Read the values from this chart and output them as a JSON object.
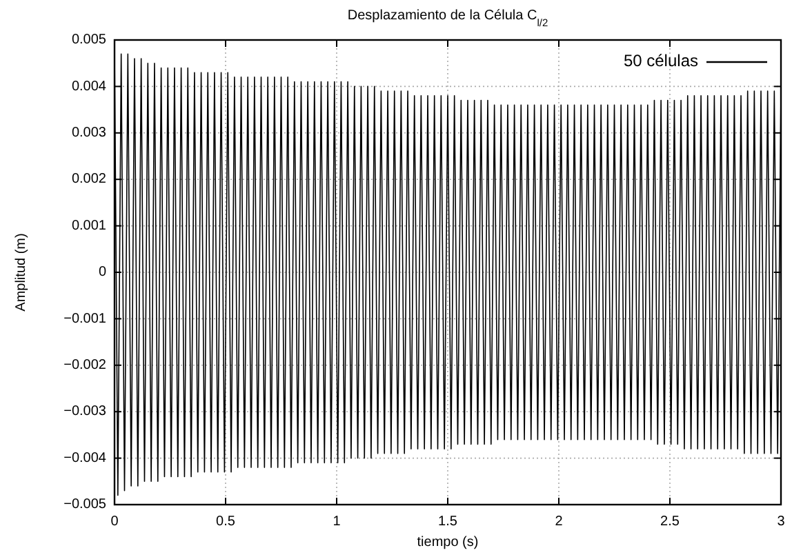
{
  "chart_data": {
    "type": "line",
    "title": "Desplazamiento de la Célula C$_{l/2}$",
    "xlabel": "tiempo (s)",
    "ylabel": "Amplitud (m)",
    "x": [
      0,
      0.015,
      0.03,
      0.045,
      0.06,
      0.075,
      0.09,
      0.105,
      0.12,
      0.135,
      0.15,
      0.165,
      0.18,
      0.195,
      0.21,
      0.225,
      0.24,
      0.255,
      0.27,
      0.285,
      0.3,
      0.315,
      0.33,
      0.345,
      0.36,
      0.375,
      0.39,
      0.405,
      0.42,
      0.435,
      0.45,
      0.465,
      0.48,
      0.495,
      0.51,
      0.525,
      0.54,
      0.555,
      0.57,
      0.585,
      0.6,
      0.615,
      0.63,
      0.645,
      0.66,
      0.675,
      0.69,
      0.705,
      0.72,
      0.735,
      0.75,
      0.765,
      0.78,
      0.795,
      0.81,
      0.825,
      0.84,
      0.855,
      0.87,
      0.885,
      0.9,
      0.915,
      0.93,
      0.945,
      0.96,
      0.975,
      0.99,
      1.005,
      1.02,
      1.035,
      1.05,
      1.065,
      1.08,
      1.095,
      1.11,
      1.125,
      1.14,
      1.155,
      1.17,
      1.185,
      1.2,
      1.215,
      1.23,
      1.245,
      1.26,
      1.275,
      1.29,
      1.305,
      1.32,
      1.335,
      1.35,
      1.365,
      1.38,
      1.395,
      1.41,
      1.425,
      1.44,
      1.455,
      1.47,
      1.485,
      1.5,
      1.515,
      1.53,
      1.545,
      1.56,
      1.575,
      1.59,
      1.605,
      1.62,
      1.635,
      1.65,
      1.665,
      1.68,
      1.695,
      1.71,
      1.725,
      1.74,
      1.755,
      1.77,
      1.785,
      1.8,
      1.815,
      1.83,
      1.845,
      1.86,
      1.875,
      1.89,
      1.905,
      1.92,
      1.935,
      1.95,
      1.965,
      1.98,
      1.995,
      2.01,
      2.025,
      2.04,
      2.055,
      2.07,
      2.085,
      2.1,
      2.115,
      2.13,
      2.145,
      2.16,
      2.175,
      2.19,
      2.205,
      2.22,
      2.235,
      2.25,
      2.265,
      2.28,
      2.295,
      2.31,
      2.325,
      2.34,
      2.355,
      2.37,
      2.385,
      2.4,
      2.415,
      2.43,
      2.445,
      2.46,
      2.475,
      2.49,
      2.505,
      2.52,
      2.535,
      2.55,
      2.565,
      2.58,
      2.595,
      2.61,
      2.625,
      2.64,
      2.655,
      2.67,
      2.685,
      2.7,
      2.715,
      2.73,
      2.745,
      2.76,
      2.775,
      2.79,
      2.805,
      2.82,
      2.835,
      2.85,
      2.865,
      2.88,
      2.895,
      2.91,
      2.925,
      2.94,
      2.955,
      2.97,
      2.985,
      3
    ],
    "series": [
      {
        "name": "50 células",
        "color": "#000000",
        "values": [
          0.0048,
          -0.0048,
          0.0047,
          -0.0047,
          0.0047,
          -0.0046,
          0.0046,
          -0.0046,
          0.0046,
          -0.0045,
          0.0045,
          -0.0045,
          0.0045,
          -0.0045,
          0.0044,
          -0.0044,
          0.0044,
          -0.0044,
          0.0044,
          -0.0044,
          0.0044,
          -0.0044,
          0.0044,
          -0.0044,
          0.0043,
          -0.0043,
          0.0043,
          -0.0043,
          0.0043,
          -0.0043,
          0.0043,
          -0.0043,
          0.0043,
          -0.0043,
          0.0043,
          -0.0043,
          0.0042,
          -0.0042,
          0.0042,
          -0.0042,
          0.0042,
          -0.0042,
          0.0042,
          -0.0042,
          0.0042,
          -0.0042,
          0.0042,
          -0.0042,
          0.0042,
          -0.0042,
          0.0042,
          -0.0042,
          0.0042,
          -0.0042,
          0.0041,
          -0.0041,
          0.0041,
          -0.0041,
          0.0041,
          -0.0041,
          0.0041,
          -0.0041,
          0.0041,
          -0.0041,
          0.0041,
          -0.0041,
          0.0041,
          -0.0041,
          0.0041,
          -0.0041,
          0.0041,
          -0.004,
          0.004,
          -0.004,
          0.004,
          -0.004,
          0.004,
          -0.004,
          0.004,
          -0.0039,
          0.0039,
          -0.0039,
          0.0039,
          -0.0039,
          0.0039,
          -0.0039,
          0.0039,
          -0.0039,
          0.0039,
          -0.0038,
          0.0038,
          -0.0038,
          0.0038,
          -0.0038,
          0.0038,
          -0.0038,
          0.0038,
          -0.0038,
          0.0038,
          -0.0038,
          0.0038,
          -0.0038,
          0.0038,
          -0.0037,
          0.0037,
          -0.0037,
          0.0037,
          -0.0037,
          0.0037,
          -0.0037,
          0.0037,
          -0.0037,
          0.0037,
          -0.0037,
          0.0036,
          -0.0036,
          0.0036,
          -0.0036,
          0.0036,
          -0.0036,
          0.0036,
          -0.0036,
          0.0036,
          -0.0036,
          0.0036,
          -0.0036,
          0.0036,
          -0.0036,
          0.0036,
          -0.0036,
          0.0036,
          -0.0036,
          0.0036,
          -0.0036,
          0.0036,
          -0.0036,
          0.0036,
          -0.0036,
          0.0036,
          -0.0036,
          0.0036,
          -0.0036,
          0.0036,
          -0.0036,
          0.0036,
          -0.0036,
          0.0036,
          -0.0036,
          0.0036,
          -0.0036,
          0.0036,
          -0.0036,
          0.0036,
          -0.0036,
          0.0036,
          -0.0036,
          0.0036,
          -0.0036,
          0.0036,
          -0.0036,
          0.0036,
          -0.0036,
          0.0037,
          -0.0037,
          0.0037,
          -0.0037,
          0.0037,
          -0.0037,
          0.0037,
          -0.0037,
          0.0037,
          -0.0038,
          0.0038,
          -0.0038,
          0.0038,
          -0.0038,
          0.0038,
          -0.0038,
          0.0038,
          -0.0038,
          0.0038,
          -0.0038,
          0.0038,
          -0.0038,
          0.0038,
          -0.0038,
          0.0038,
          -0.0038,
          0.0038,
          -0.0039,
          0.0039,
          -0.0039,
          0.0039,
          -0.0039,
          0.0039,
          -0.0039,
          0.0039,
          -0.0039,
          0.0039,
          -0.0039,
          0.0039
        ]
      }
    ],
    "xlim": [
      0,
      3
    ],
    "xticks": [
      0,
      0.5,
      1,
      1.5,
      2,
      2.5,
      3
    ],
    "ylim": [
      -0.005,
      0.005
    ],
    "yticks": [
      -0.005,
      -0.004,
      -0.003,
      -0.002,
      -0.001,
      0,
      0.001,
      0.002,
      0.003,
      0.004,
      0.005
    ],
    "grid": true,
    "legend": "top right",
    "line_style": "solid"
  }
}
